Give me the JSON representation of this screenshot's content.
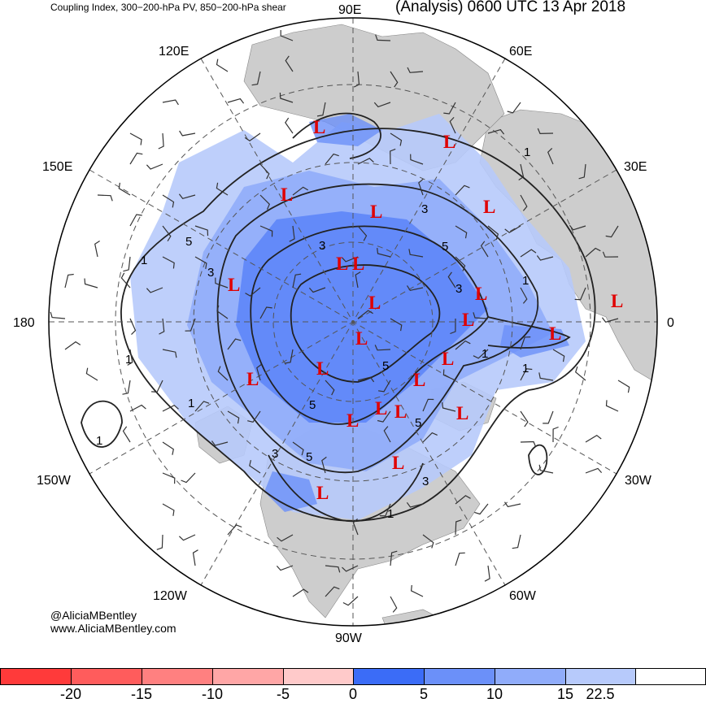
{
  "header": {
    "left_title": "Coupling Index, 300−200-hPa PV, 850−200-hPa shear",
    "right_title": "(Analysis) 0600 UTC 13 Apr 2018"
  },
  "credits": {
    "handle": "@AliciaMBentley",
    "site": "www.AliciaMBentley.com"
  },
  "longitude_labels": [
    "90E",
    "60E",
    "30E",
    "0",
    "30W",
    "60W",
    "90W",
    "120W",
    "150W",
    "180",
    "150E",
    "120E"
  ],
  "low_marker_text": "L",
  "low_marker_count": 24,
  "contour_labels": [
    "1",
    "1",
    "1",
    "1",
    "1",
    "1",
    "1",
    "1",
    "1",
    "3",
    "3",
    "3",
    "3",
    "3",
    "3",
    "5",
    "5",
    "5",
    "5",
    "5",
    "5"
  ],
  "colorbar": {
    "colors": [
      "#ff3a3a",
      "#ff5c5c",
      "#ff8080",
      "#ffa6a6",
      "#ffcaca",
      "#3b6cf7",
      "#6b90f9",
      "#90acfa",
      "#b7cafb",
      "#ffffff"
    ],
    "tick_labels": [
      "-20",
      "-15",
      "-10",
      "-5",
      "0",
      "5",
      "10",
      "15",
      "22.5"
    ]
  },
  "colors": {
    "land": "#cdcdcd",
    "shading_light": "#b7cafb",
    "shading_mid": "#90acfa",
    "shading_dark": "#3b6cf7",
    "low_marker": "#e00000",
    "contour": "#222222",
    "grid": "#555555"
  },
  "icons": {
    "low_marker": "letter-L-symbol",
    "wind_barb": "wind-barb-icon"
  }
}
